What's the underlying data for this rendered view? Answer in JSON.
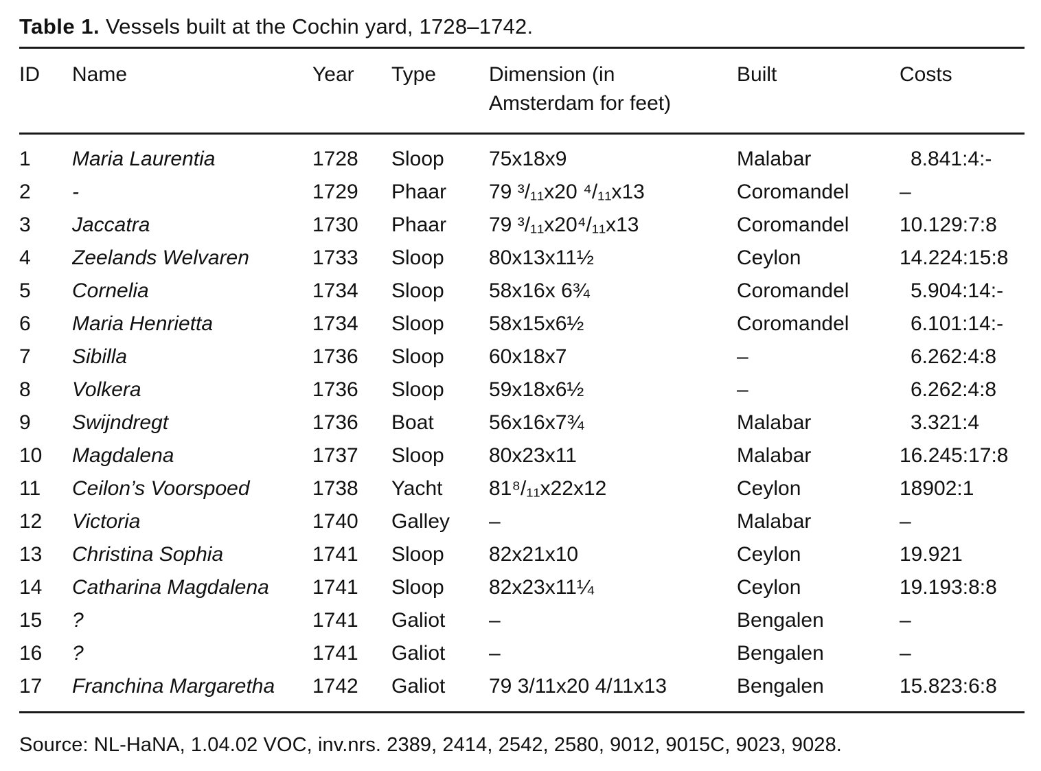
{
  "page": {
    "title_label": "Table 1.",
    "title_text": "Vessels built at the Cochin yard, 1728–1742.",
    "source": "Source: NL-HaNA, 1.04.02 VOC, inv.nrs. 2389, 2414, 2542, 2580, 9012, 9015C, 9023, 9028."
  },
  "colors": {
    "background": "#ffffff",
    "text": "#111111",
    "rule": "#1a1a1a"
  },
  "table": {
    "columns": [
      {
        "key": "id",
        "label": "ID"
      },
      {
        "key": "name",
        "label": "Name"
      },
      {
        "key": "year",
        "label": "Year"
      },
      {
        "key": "type",
        "label": "Type"
      },
      {
        "key": "dimension",
        "label": "Dimension (in\nAmsterdam for feet)"
      },
      {
        "key": "built",
        "label": "Built"
      },
      {
        "key": "costs",
        "label": "Costs"
      }
    ],
    "rows": [
      [
        "1",
        "Maria Laurentia",
        "1728",
        "Sloop",
        "75x18x9",
        "Malabar",
        "8.841:4:-"
      ],
      [
        "2",
        "-",
        "1729",
        "Phaar",
        "79 ³/₁₁x20 ⁴/₁₁x13",
        "Coromandel",
        "–"
      ],
      [
        "3",
        "Jaccatra",
        "1730",
        "Phaar",
        "79 ³/₁₁x20⁴/₁₁x13",
        "Coromandel",
        "10.129:7:8"
      ],
      [
        "4",
        "Zeelands Welvaren",
        "1733",
        "Sloop",
        "80x13x11½",
        "Ceylon",
        "14.224:15:8"
      ],
      [
        "5",
        "Cornelia",
        "1734",
        "Sloop",
        "58x16x 6¾",
        "Coromandel",
        "5.904:14:-"
      ],
      [
        "6",
        "Maria Henrietta",
        "1734",
        "Sloop",
        "58x15x6½",
        "Coromandel",
        "6.101:14:-"
      ],
      [
        "7",
        "Sibilla",
        "1736",
        "Sloop",
        "60x18x7",
        "–",
        "6.262:4:8"
      ],
      [
        "8",
        "Volkera",
        "1736",
        "Sloop",
        "59x18x6½",
        "–",
        "6.262:4:8"
      ],
      [
        "9",
        "Swijndregt",
        "1736",
        "Boat",
        "56x16x7¾",
        "Malabar",
        "3.321:4"
      ],
      [
        "10",
        "Magdalena",
        "1737",
        "Sloop",
        "80x23x11",
        "Malabar",
        "16.245:17:8"
      ],
      [
        "11",
        "Ceilon’s Voorspoed",
        "1738",
        "Yacht",
        "81⁸/₁₁x22x12",
        "Ceylon",
        "18902:1"
      ],
      [
        "12",
        "Victoria",
        "1740",
        "Galley",
        "–",
        "Malabar",
        "–"
      ],
      [
        "13",
        "Christina Sophia",
        "1741",
        "Sloop",
        "82x21x10",
        "Ceylon",
        "19.921"
      ],
      [
        "14",
        "Catharina Magdalena",
        "1741",
        "Sloop",
        "82x23x11¼",
        "Ceylon",
        "19.193:8:8"
      ],
      [
        "15",
        "?",
        "1741",
        "Galiot",
        "–",
        "Bengalen",
        "–"
      ],
      [
        "16",
        "?",
        "1741",
        "Galiot",
        "–",
        "Bengalen",
        "–"
      ],
      [
        "17",
        "Franchina Margaretha",
        "1742",
        "Galiot",
        "79 3/11x20 4/11x13",
        "Bengalen",
        "15.823:6:8"
      ]
    ]
  }
}
